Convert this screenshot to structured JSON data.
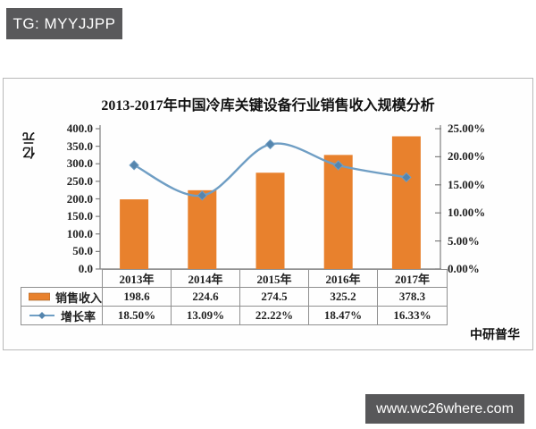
{
  "badge": {
    "text": "TG: MYYJJPP"
  },
  "source": {
    "label": "中研普华"
  },
  "watermark": {
    "url": "www.wc26where.com"
  },
  "chart_data": {
    "type": "bar",
    "subtype": "bar+line-combo",
    "title": "2013-2017年中国冷库关键设备行业销售收入规模分析",
    "categories": [
      "2013年",
      "2014年",
      "2015年",
      "2016年",
      "2017年"
    ],
    "series": [
      {
        "name": "销售收入",
        "type": "bar",
        "axis": "left",
        "values": [
          198.6,
          224.6,
          274.5,
          325.2,
          378.3
        ],
        "value_labels": [
          "198.6",
          "224.6",
          "274.5",
          "325.2",
          "378.3"
        ],
        "color": "#e8812d"
      },
      {
        "name": "增长率",
        "type": "line",
        "axis": "right",
        "values": [
          18.5,
          13.09,
          22.22,
          18.47,
          16.33
        ],
        "value_labels": [
          "18.50%",
          "13.09%",
          "22.22%",
          "18.47%",
          "16.33%"
        ],
        "color": "#6f9ec4",
        "marker_color": "#5585ad",
        "marker": "diamond",
        "smooth": true
      }
    ],
    "left_axis": {
      "label": "亿元",
      "min": 0,
      "max": 400,
      "step": 50,
      "tick_labels": [
        "0.0",
        "50.0",
        "100.0",
        "150.0",
        "200.0",
        "250.0",
        "300.0",
        "350.0",
        "400.0"
      ]
    },
    "right_axis": {
      "min": 0,
      "max": 25,
      "step": 5,
      "tick_labels": [
        "0.00%",
        "5.00%",
        "10.00%",
        "15.00%",
        "20.00%",
        "25.00%"
      ]
    },
    "grid": false,
    "legend_position": "table-left"
  }
}
